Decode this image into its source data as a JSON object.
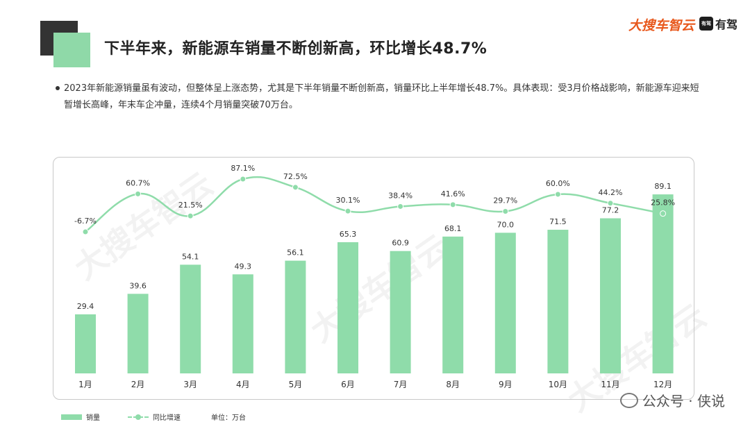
{
  "header": {
    "title": "下半年来，新能源车销量不断创新高，环比增长48.7%",
    "brand": "大搜车智云",
    "brand_partner": "有驾",
    "brand_partner_badge": "有驾"
  },
  "summary": {
    "text": "2023年新能源销量虽有波动，但整体呈上涨态势，尤其是下半年销量不断创新高，销量环比上半年增长48.7%。具体表现：受3月价格战影响，新能源车迎来短暂增长高峰，年末车企冲量，连续4个月销量突破70万台。"
  },
  "chart_data": {
    "type": "bar",
    "categories": [
      "1月",
      "2月",
      "3月",
      "4月",
      "5月",
      "6月",
      "7月",
      "8月",
      "9月",
      "10月",
      "11月",
      "12月"
    ],
    "series": [
      {
        "name": "销量",
        "type": "bar",
        "values": [
          29.4,
          39.6,
          54.1,
          49.3,
          56.1,
          65.3,
          60.9,
          68.1,
          70.0,
          71.5,
          77.2,
          89.1
        ],
        "labels": [
          "29.4",
          "39.6",
          "54.1",
          "49.3",
          "56.1",
          "65.3",
          "60.9",
          "68.1",
          "70.0",
          "71.5",
          "77.2",
          "89.1"
        ],
        "color": "#8fdcaa"
      },
      {
        "name": "同比增速",
        "type": "line",
        "values": [
          -6.7,
          60.7,
          21.5,
          87.1,
          72.5,
          30.1,
          38.4,
          41.6,
          29.7,
          60.0,
          44.2,
          25.8
        ],
        "labels": [
          "-6.7%",
          "60.7%",
          "21.5%",
          "87.1%",
          "72.5%",
          "30.1%",
          "38.4%",
          "41.6%",
          "29.7%",
          "60.0%",
          "44.2%",
          "25.8%"
        ],
        "unit": "%",
        "color": "#8fdcaa"
      }
    ],
    "bar_ylim": [
      0,
      95
    ],
    "line_ylim": [
      -10,
      90
    ],
    "grid": false,
    "legend_position": "bottom-left"
  },
  "legend": {
    "bar_label": "销量",
    "line_label": "同比增速",
    "unit_label": "单位：万台"
  },
  "watermark": {
    "text": "公众号 · 侠说",
    "background_text": "大搜车智云"
  }
}
